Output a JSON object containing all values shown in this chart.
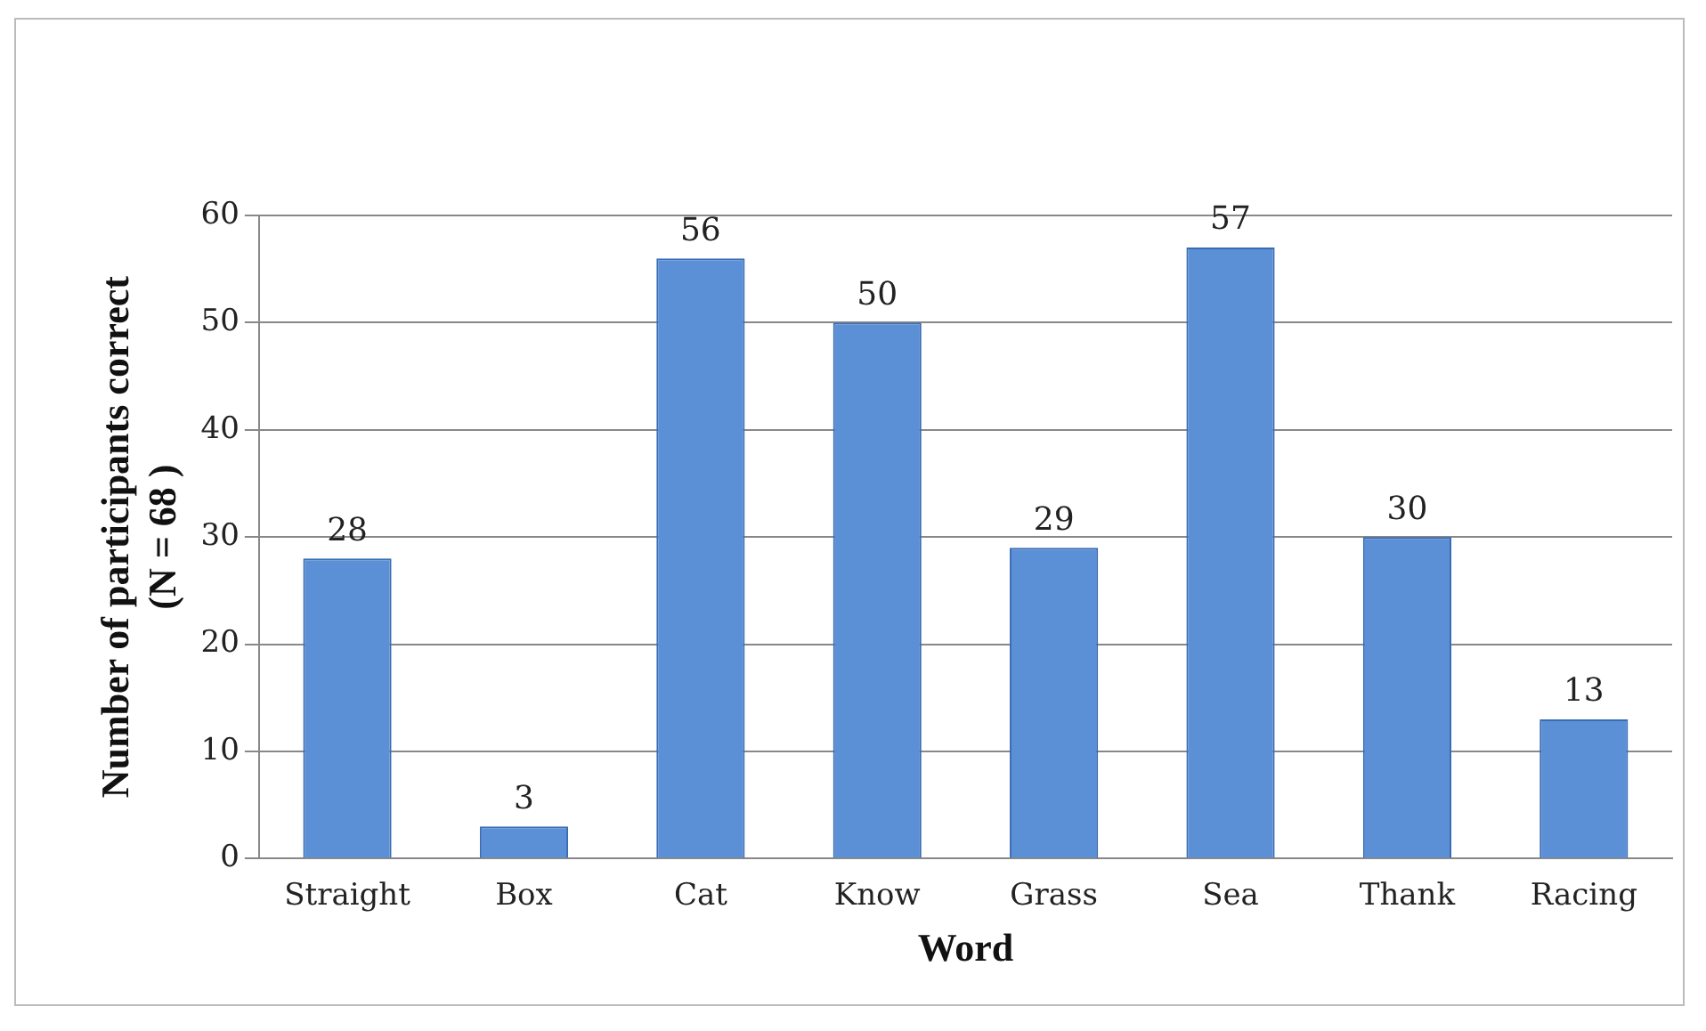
{
  "chart_data": {
    "type": "bar",
    "xlabel": "Word",
    "ylabel": "Number of participants correct\n(N = 68 )",
    "categories": [
      "Straight",
      "Box",
      "Cat",
      "Know",
      "Grass",
      "Sea",
      "Thank",
      "Racing"
    ],
    "values": [
      28,
      3,
      56,
      50,
      29,
      57,
      30,
      13
    ],
    "color": "#5b8fd6",
    "ylim": [
      0,
      60
    ],
    "yticks": [
      0,
      10,
      20,
      30,
      40,
      50,
      60
    ],
    "grid": "y",
    "data_labels": true,
    "legend": false
  }
}
